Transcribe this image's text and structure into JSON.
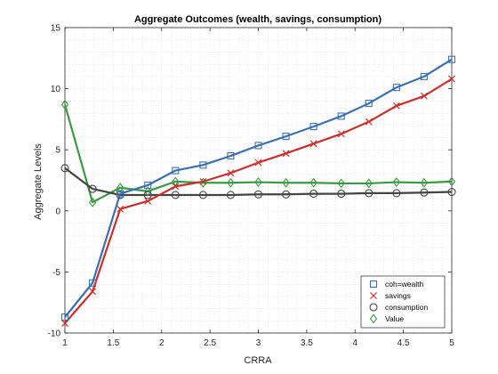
{
  "chart_data": {
    "type": "line",
    "title": "Aggregate Outcomes (wealth, savings, consumption)",
    "xlabel": "CRRA",
    "ylabel": "Aggregate Levels",
    "xlim": [
      1,
      5
    ],
    "ylim": [
      -10,
      15
    ],
    "xticks": [
      1,
      1.5,
      2,
      2.5,
      3,
      3.5,
      4,
      4.5,
      5
    ],
    "xtick_labels": [
      "1",
      "1.5",
      "2",
      "2.5",
      "3",
      "3.5",
      "4",
      "4.5",
      "5"
    ],
    "yticks": [
      -10,
      -5,
      0,
      5,
      10,
      15
    ],
    "ytick_labels": [
      "-10",
      "-5",
      "0",
      "5",
      "10",
      "15"
    ],
    "grid": "minor-dotted",
    "legend_position": "bottom-right",
    "x": [
      1.0,
      1.2857,
      1.5714,
      1.8571,
      2.1429,
      2.4286,
      2.7143,
      3.0,
      3.2857,
      3.5714,
      3.8571,
      4.1429,
      4.4286,
      4.7143,
      5.0
    ],
    "series": [
      {
        "name": "coh=wealth",
        "marker": "square",
        "color": "#3a6fb0",
        "values": [
          -8.7,
          -5.9,
          1.4,
          2.1,
          3.3,
          3.75,
          4.5,
          5.35,
          6.1,
          6.9,
          7.75,
          8.8,
          10.1,
          11.0,
          12.4
        ]
      },
      {
        "name": "savings",
        "marker": "x",
        "color": "#c9302c",
        "values": [
          -9.2,
          -6.6,
          0.15,
          0.8,
          2.0,
          2.4,
          3.1,
          3.95,
          4.7,
          5.5,
          6.3,
          7.3,
          8.6,
          9.4,
          10.8
        ]
      },
      {
        "name": "consumption",
        "marker": "circle",
        "color": "#444444",
        "values": [
          3.5,
          1.8,
          1.3,
          1.3,
          1.3,
          1.3,
          1.3,
          1.35,
          1.35,
          1.4,
          1.4,
          1.45,
          1.45,
          1.5,
          1.55
        ]
      },
      {
        "name": "Value",
        "marker": "diamond",
        "color": "#3a9a44",
        "values": [
          8.7,
          0.7,
          1.9,
          1.6,
          2.4,
          2.3,
          2.3,
          2.35,
          2.3,
          2.3,
          2.25,
          2.25,
          2.35,
          2.3,
          2.4
        ]
      }
    ]
  }
}
